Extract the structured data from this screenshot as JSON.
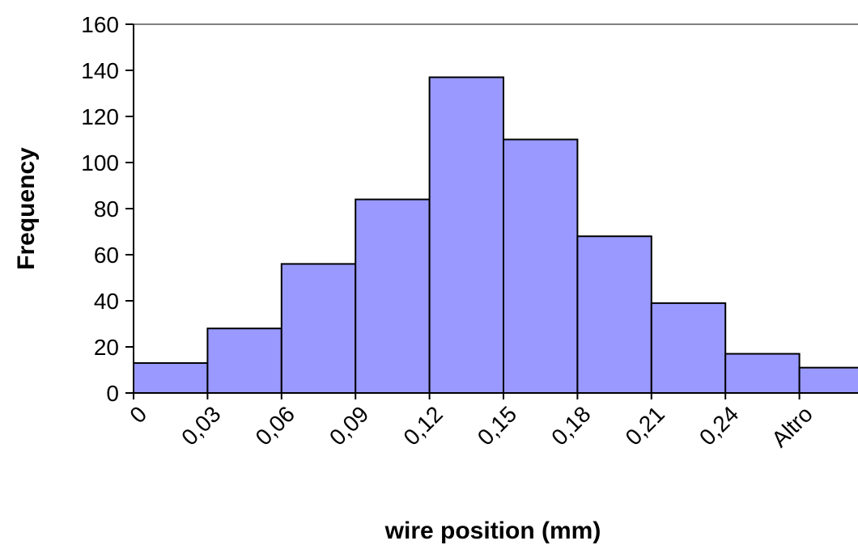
{
  "chart_data": {
    "type": "bar",
    "title": "",
    "xlabel": "wire position (mm)",
    "ylabel": "Frequency",
    "categories": [
      "0",
      "0,03",
      "0,06",
      "0,09",
      "0,12",
      "0,15",
      "0,18",
      "0,21",
      "0,24",
      "Altro"
    ],
    "values": [
      13,
      28,
      56,
      84,
      137,
      110,
      68,
      39,
      17,
      11
    ],
    "ylim": [
      0,
      160
    ],
    "yticks": [
      0,
      20,
      40,
      60,
      80,
      100,
      120,
      140,
      160
    ],
    "grid": false,
    "legend": "none",
    "bar_color": "#9999ff",
    "bar_edge_color": "#000000",
    "plot_border_color": "#808080"
  }
}
